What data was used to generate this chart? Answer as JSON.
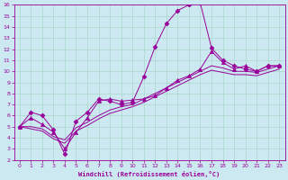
{
  "bg_color": "#cce8f0",
  "line_color": "#990099",
  "grid_color": "#a8d8c8",
  "xlabel": "Windchill (Refroidissement éolien,°C)",
  "xlim": [
    -0.5,
    23.5
  ],
  "ylim": [
    2,
    16
  ],
  "xticks": [
    0,
    1,
    2,
    3,
    4,
    5,
    6,
    7,
    8,
    9,
    10,
    11,
    12,
    13,
    14,
    15,
    16,
    17,
    18,
    19,
    20,
    21,
    22,
    23
  ],
  "yticks": [
    2,
    3,
    4,
    5,
    6,
    7,
    8,
    9,
    10,
    11,
    12,
    13,
    14,
    15,
    16
  ],
  "series": [
    {
      "x": [
        0,
        1,
        2,
        3,
        4,
        5,
        6,
        7,
        8,
        9,
        10,
        11,
        12,
        13,
        14,
        15,
        16,
        17,
        18,
        19,
        20,
        21,
        22,
        23
      ],
      "y": [
        5.0,
        6.3,
        6.0,
        4.7,
        2.5,
        5.5,
        6.3,
        7.5,
        7.3,
        7.0,
        7.2,
        9.5,
        12.2,
        14.3,
        15.5,
        16.0,
        16.2,
        12.1,
        11.0,
        10.5,
        10.2,
        10.0,
        10.5,
        10.5
      ],
      "marker": "D",
      "markersize": 2.5
    },
    {
      "x": [
        0,
        1,
        2,
        3,
        4,
        5,
        6,
        7,
        8,
        9,
        10,
        11,
        12,
        13,
        14,
        15,
        16,
        17,
        18,
        19,
        20,
        21,
        22,
        23
      ],
      "y": [
        5.0,
        5.0,
        4.8,
        4.1,
        3.8,
        4.9,
        5.4,
        6.0,
        6.5,
        6.8,
        7.0,
        7.5,
        8.0,
        8.5,
        9.0,
        9.5,
        10.0,
        10.5,
        10.3,
        10.0,
        10.0,
        9.9,
        10.2,
        10.5
      ],
      "marker": null,
      "markersize": 0
    },
    {
      "x": [
        0,
        1,
        2,
        3,
        4,
        5,
        6,
        7,
        8,
        9,
        10,
        11,
        12,
        13,
        14,
        15,
        16,
        17,
        18,
        19,
        20,
        21,
        22,
        23
      ],
      "y": [
        5.0,
        4.8,
        4.6,
        3.9,
        3.5,
        4.6,
        5.1,
        5.7,
        6.2,
        6.5,
        6.8,
        7.2,
        7.7,
        8.2,
        8.7,
        9.2,
        9.7,
        10.1,
        9.9,
        9.7,
        9.7,
        9.6,
        9.9,
        10.2
      ],
      "marker": null,
      "markersize": 0
    },
    {
      "x": [
        0,
        1,
        2,
        3,
        4,
        5,
        6,
        7,
        8,
        9,
        10,
        11,
        12,
        13,
        14,
        15,
        16,
        17,
        18,
        19,
        20,
        21,
        22,
        23
      ],
      "y": [
        5.0,
        5.8,
        5.2,
        4.5,
        3.0,
        4.5,
        5.8,
        7.3,
        7.5,
        7.3,
        7.4,
        7.5,
        7.8,
        8.5,
        9.2,
        9.6,
        10.2,
        11.8,
        10.8,
        10.2,
        10.5,
        10.0,
        10.5,
        10.5
      ],
      "marker": "^",
      "markersize": 3
    }
  ]
}
